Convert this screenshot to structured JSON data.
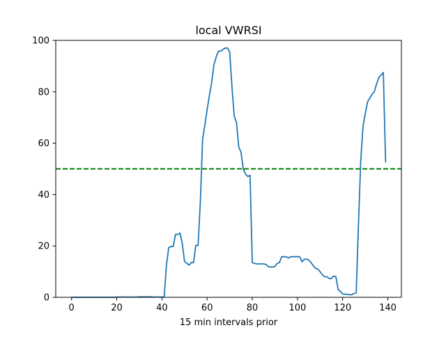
{
  "chart_data": {
    "type": "line",
    "title": "local VWRSI",
    "xlabel": "15 min intervals prior",
    "ylabel": "",
    "xlim": [
      -7,
      146
    ],
    "ylim": [
      0,
      100
    ],
    "xticks": [
      0,
      20,
      40,
      60,
      80,
      100,
      120,
      140
    ],
    "yticks": [
      0,
      20,
      40,
      60,
      80,
      100
    ],
    "grid": false,
    "legend": "none",
    "reference_line": {
      "y": 50,
      "color": "#008000",
      "style": "dashed"
    },
    "series": [
      {
        "color": "#1f77b4",
        "x": [
          0,
          1,
          2,
          3,
          4,
          5,
          6,
          7,
          8,
          9,
          10,
          11,
          12,
          13,
          14,
          15,
          16,
          17,
          18,
          19,
          20,
          21,
          22,
          23,
          24,
          25,
          26,
          27,
          28,
          29,
          30,
          31,
          32,
          33,
          34,
          35,
          36,
          37,
          38,
          39,
          40,
          41,
          42,
          43,
          44,
          45,
          46,
          47,
          48,
          49,
          50,
          51,
          52,
          53,
          54,
          55,
          56,
          57,
          58,
          59,
          60,
          61,
          62,
          63,
          64,
          65,
          66,
          67,
          68,
          69,
          70,
          71,
          72,
          73,
          74,
          75,
          76,
          77,
          78,
          79,
          80,
          81,
          82,
          83,
          84,
          85,
          86,
          87,
          88,
          89,
          90,
          91,
          92,
          93,
          94,
          95,
          96,
          97,
          98,
          99,
          100,
          101,
          102,
          103,
          104,
          105,
          106,
          107,
          108,
          109,
          110,
          111,
          112,
          113,
          114,
          115,
          116,
          117,
          118,
          119,
          120,
          121,
          122,
          123,
          124,
          125,
          126,
          127,
          128,
          129,
          130,
          131,
          132,
          133,
          134,
          135,
          136,
          137,
          138,
          139
        ],
        "y": [
          0,
          0,
          0,
          0,
          0,
          0,
          0,
          0,
          0,
          0,
          0,
          0,
          0,
          0,
          0,
          0,
          0,
          0,
          0,
          0,
          0.1,
          0.1,
          0.1,
          0.1,
          0.1,
          0.1,
          0.1,
          0.1,
          0.1,
          0.1,
          0.2,
          0.2,
          0.2,
          0.2,
          0.2,
          0.2,
          0.1,
          0.1,
          0.1,
          0.1,
          0.1,
          0.2,
          12.5,
          19.3,
          19.8,
          19.8,
          24.5,
          24.5,
          25,
          21,
          14,
          13.3,
          12.5,
          13.5,
          13.5,
          20.2,
          20.2,
          37,
          61.5,
          67,
          73,
          78.5,
          83.5,
          90.5,
          93.5,
          95.8,
          95.8,
          96.5,
          97,
          97,
          95.5,
          82,
          70.5,
          68,
          58.5,
          56.5,
          50,
          48,
          47,
          47.5,
          13.5,
          13.2,
          13,
          13,
          13,
          13,
          12.8,
          12,
          11.8,
          11.8,
          12,
          13.2,
          13.5,
          15.8,
          15.8,
          15.8,
          15.3,
          15.8,
          15.8,
          15.8,
          15.8,
          15.8,
          13.8,
          14.8,
          14.8,
          14.6,
          13.5,
          12.3,
          11.3,
          11,
          10,
          8.8,
          8,
          8,
          7.3,
          7.3,
          8.3,
          8,
          3,
          2.3,
          1.3,
          1.2,
          1.2,
          1,
          1,
          1.5,
          1.7,
          28.5,
          53,
          66.5,
          71.5,
          76,
          77.5,
          79,
          80,
          83,
          85.5,
          86.5,
          87.5,
          52.5
        ]
      }
    ]
  }
}
